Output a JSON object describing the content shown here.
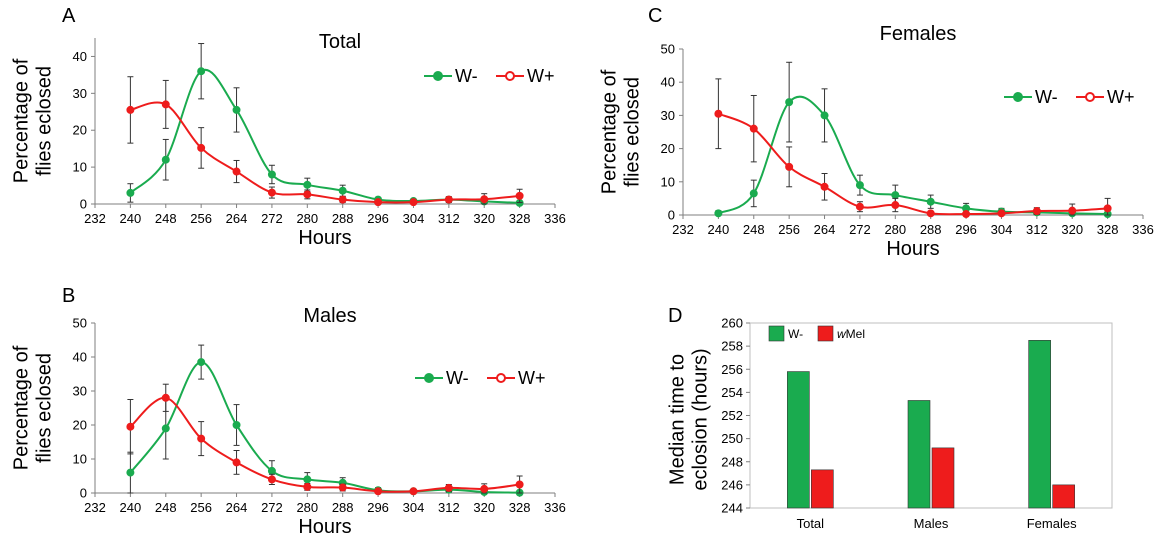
{
  "colors": {
    "w_minus": "#1aab4f",
    "w_plus": "#ee1c1c",
    "axis": "#7f7f7f"
  },
  "chart_data": [
    {
      "panel": "A",
      "type": "line",
      "title": "Total",
      "xlabel": "Hours",
      "ylabel": [
        "Percentage of",
        "flies eclosed"
      ],
      "xlim": [
        232,
        336
      ],
      "xticks": [
        232,
        240,
        248,
        256,
        264,
        272,
        280,
        288,
        296,
        304,
        312,
        320,
        328,
        336
      ],
      "ylim": [
        0,
        45
      ],
      "yticks": [
        0,
        10,
        20,
        30,
        40
      ],
      "legend": "top-right",
      "x": [
        240,
        248,
        256,
        264,
        272,
        280,
        288,
        296,
        304,
        312,
        320,
        328
      ],
      "series": [
        {
          "name": "W-",
          "color": "#1aab4f",
          "values": [
            3,
            12,
            36,
            25.5,
            8,
            5.2,
            3.6,
            1.2,
            0.8,
            1.2,
            0.7,
            0.3
          ],
          "errors": [
            2.5,
            5.5,
            7.5,
            6,
            2.5,
            1.8,
            1.5,
            0.6,
            0.5,
            0.6,
            0.5,
            0.3
          ]
        },
        {
          "name": "W+",
          "color": "#ee1c1c",
          "values": [
            25.5,
            27,
            15.2,
            8.8,
            3.1,
            2.6,
            1.2,
            0.5,
            0.5,
            1.2,
            1.3,
            2.2
          ],
          "errors": [
            9,
            6.5,
            5.5,
            3,
            1.5,
            1.2,
            0.8,
            0.4,
            0.4,
            0.8,
            1.5,
            1.8
          ]
        }
      ]
    },
    {
      "panel": "B",
      "type": "line",
      "title": "Males",
      "xlabel": "Hours",
      "ylabel": [
        "Percentage of",
        "flies eclosed"
      ],
      "xlim": [
        232,
        336
      ],
      "xticks": [
        232,
        240,
        248,
        256,
        264,
        272,
        280,
        288,
        296,
        304,
        312,
        320,
        328,
        336
      ],
      "ylim": [
        0,
        50
      ],
      "yticks": [
        0,
        10,
        20,
        30,
        40,
        50
      ],
      "legend": "top-right",
      "x": [
        240,
        248,
        256,
        264,
        272,
        280,
        288,
        296,
        304,
        312,
        320,
        328
      ],
      "series": [
        {
          "name": "W-",
          "color": "#1aab4f",
          "values": [
            6,
            19,
            38.5,
            20,
            6.5,
            4,
            3,
            0.8,
            0.5,
            1,
            0.3,
            0.1
          ],
          "errors": [
            6,
            9,
            5,
            6,
            3,
            2,
            1.5,
            0.8,
            0.5,
            0.8,
            0.4,
            0.2
          ]
        },
        {
          "name": "W+",
          "color": "#ee1c1c",
          "values": [
            19.5,
            28,
            16,
            9,
            4,
            1.8,
            1.6,
            0.5,
            0.5,
            1.5,
            1.2,
            2.5
          ],
          "errors": [
            8,
            4,
            5,
            3.5,
            1.5,
            1,
            1,
            0.5,
            0.4,
            1,
            1.5,
            2.5
          ]
        }
      ]
    },
    {
      "panel": "C",
      "type": "line",
      "title": "Females",
      "xlabel": "Hours",
      "ylabel": [
        "Percentage of",
        "flies eclosed"
      ],
      "xlim": [
        232,
        336
      ],
      "xticks": [
        232,
        240,
        248,
        256,
        264,
        272,
        280,
        288,
        296,
        304,
        312,
        320,
        328,
        336
      ],
      "ylim": [
        0,
        50
      ],
      "yticks": [
        0,
        10,
        20,
        30,
        40,
        50
      ],
      "legend": "top-right",
      "x": [
        240,
        248,
        256,
        264,
        272,
        280,
        288,
        296,
        304,
        312,
        320,
        328
      ],
      "series": [
        {
          "name": "W-",
          "color": "#1aab4f",
          "values": [
            0.5,
            6.5,
            34,
            30,
            9,
            6,
            4,
            2,
            1,
            0.8,
            0.5,
            0.3
          ],
          "errors": [
            0.8,
            4,
            12,
            8,
            3,
            3,
            2,
            1.5,
            1,
            1,
            0.8,
            0.5
          ]
        },
        {
          "name": "W+",
          "color": "#ee1c1c",
          "values": [
            30.5,
            26,
            14.5,
            8.5,
            2.5,
            3,
            0.5,
            0.3,
            0.5,
            1.2,
            1.3,
            2
          ],
          "errors": [
            10.5,
            10,
            6,
            4,
            1.5,
            2,
            0.5,
            0.3,
            0.5,
            1,
            2,
            3
          ]
        }
      ]
    },
    {
      "panel": "D",
      "type": "bar",
      "ylabel": [
        "Median time to",
        "eclosion (hours)"
      ],
      "categories": [
        "Total",
        "Males",
        "Females"
      ],
      "ylim": [
        244,
        260
      ],
      "yticks": [
        244,
        246,
        248,
        250,
        252,
        254,
        256,
        258,
        260
      ],
      "legend": "top-left",
      "series": [
        {
          "name": "W-",
          "color": "#1aab4f",
          "values": [
            255.8,
            253.3,
            258.5
          ]
        },
        {
          "name": "wMel",
          "color": "#ee1c1c",
          "values": [
            247.3,
            249.2,
            246
          ]
        }
      ]
    }
  ]
}
